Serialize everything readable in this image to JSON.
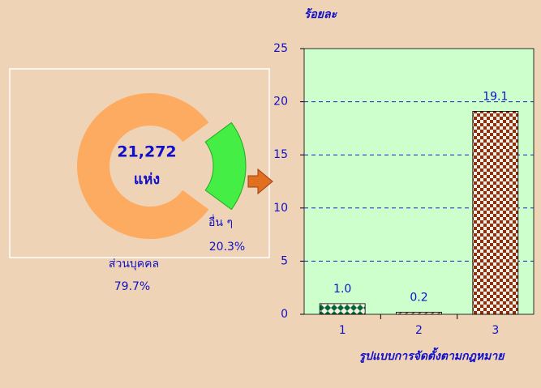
{
  "chart_data": [
    {
      "type": "pie",
      "center_text": [
        "21,272",
        "แห่ง"
      ],
      "categories": [
        "ส่วนบุคคล",
        "อื่น ๆ"
      ],
      "values": [
        79.7,
        20.3
      ],
      "value_labels": [
        "79.7%",
        "20.3%"
      ],
      "colors": [
        "#fdab60",
        "#44ee44"
      ]
    },
    {
      "type": "bar",
      "ylabel": "ร้อยละ",
      "xlabel": "รูปแบบการจัดตั้งตามกฎหมาย",
      "categories": [
        "1",
        "2",
        "3"
      ],
      "values": [
        1.0,
        0.2,
        19.1
      ],
      "value_labels": [
        "1.0",
        "0.2",
        "19.1"
      ],
      "colors": [
        "#006633",
        "#a07050",
        "#8b3010"
      ],
      "ylim": [
        0,
        25
      ],
      "yticks": [
        0,
        5,
        10,
        15,
        20,
        25
      ],
      "grid": true
    }
  ]
}
